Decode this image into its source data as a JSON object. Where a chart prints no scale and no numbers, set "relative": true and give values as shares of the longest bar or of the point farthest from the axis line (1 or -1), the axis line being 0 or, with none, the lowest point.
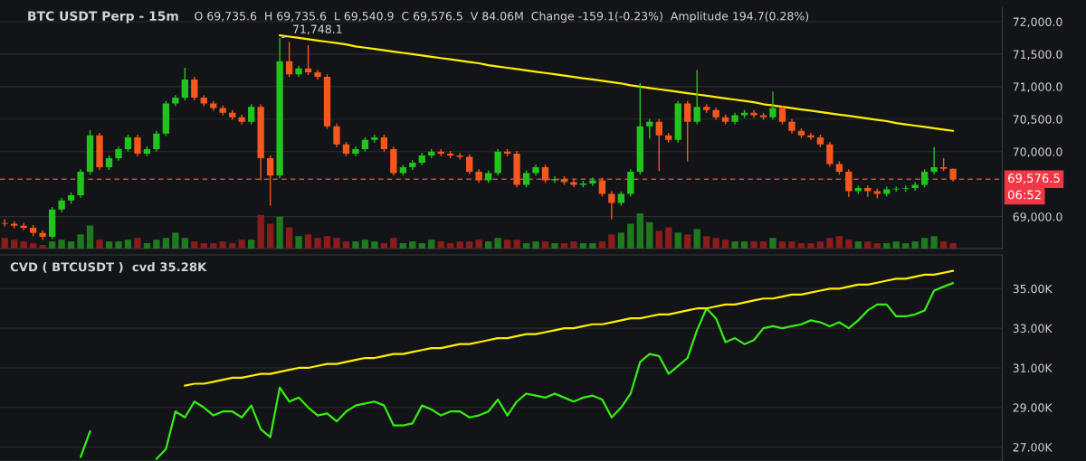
{
  "chart_data": [
    {
      "type": "candlestick",
      "title": "BTC USDT Perp - 15m",
      "subtitle": "O 69,735.6  H 69,735.6  L 69,540.9  C 69,576.5  V 84.06M  Change -159.1(-0.23%)  Amplitude 194.7(0.28%)",
      "categories": [
        null,
        null,
        null,
        null,
        null,
        null,
        null,
        null,
        null,
        null,
        null,
        null,
        null,
        null,
        null,
        null,
        null,
        null,
        null,
        null,
        null,
        null,
        null,
        null,
        null,
        null,
        null,
        null,
        null,
        null,
        null,
        null,
        null,
        null,
        null,
        null,
        null,
        null,
        null,
        null,
        null,
        null,
        null,
        null,
        null,
        null,
        null,
        null,
        null,
        null,
        null,
        null,
        null,
        null,
        null,
        null,
        null,
        null,
        null,
        null,
        null,
        null,
        null,
        null,
        null,
        null,
        null,
        null,
        null,
        null,
        null,
        null,
        null,
        null,
        null,
        null,
        null,
        null,
        null,
        null,
        null,
        null,
        null,
        null,
        null,
        null,
        null,
        null,
        null,
        null,
        null,
        null,
        null,
        null,
        null,
        null,
        null,
        null,
        null,
        null,
        null
      ],
      "ohlc": [
        [
          68900,
          68960,
          68850,
          68890
        ],
        [
          68890,
          68930,
          68820,
          68860
        ],
        [
          68860,
          68900,
          68790,
          68830
        ],
        [
          68830,
          68870,
          68700,
          68750
        ],
        [
          68750,
          68790,
          68640,
          68690
        ],
        [
          68690,
          69150,
          68650,
          69110
        ],
        [
          69110,
          69290,
          69070,
          69250
        ],
        [
          69250,
          69370,
          69200,
          69330
        ],
        [
          69330,
          69730,
          69290,
          69690
        ],
        [
          69690,
          70330,
          69650,
          70250
        ],
        [
          70250,
          70290,
          69720,
          69760
        ],
        [
          69760,
          69940,
          69720,
          69900
        ],
        [
          69900,
          70080,
          69860,
          70040
        ],
        [
          70040,
          70260,
          70000,
          70220
        ],
        [
          70220,
          70260,
          69930,
          69970
        ],
        [
          69970,
          70080,
          69930,
          70040
        ],
        [
          70040,
          70320,
          70000,
          70280
        ],
        [
          70280,
          70780,
          70240,
          70740
        ],
        [
          70740,
          70870,
          70700,
          70830
        ],
        [
          70830,
          71290,
          70790,
          71110
        ],
        [
          71110,
          71150,
          70790,
          70830
        ],
        [
          70830,
          70870,
          70700,
          70740
        ],
        [
          70740,
          70780,
          70630,
          70670
        ],
        [
          70670,
          70710,
          70560,
          70600
        ],
        [
          70600,
          70640,
          70490,
          70530
        ],
        [
          70530,
          70570,
          70420,
          70460
        ],
        [
          70460,
          70730,
          70420,
          70690
        ],
        [
          70690,
          70730,
          69560,
          69900
        ],
        [
          69900,
          69940,
          69170,
          69630
        ],
        [
          69630,
          71748.1,
          69590,
          71390
        ],
        [
          71390,
          71690,
          71150,
          71190
        ],
        [
          71190,
          71320,
          71150,
          71280
        ],
        [
          71280,
          71640,
          71180,
          71220
        ],
        [
          71220,
          71260,
          71110,
          71150
        ],
        [
          71150,
          71190,
          70350,
          70390
        ],
        [
          70390,
          70430,
          70070,
          70110
        ],
        [
          70110,
          70150,
          69930,
          69970
        ],
        [
          69970,
          70080,
          69930,
          70040
        ],
        [
          70040,
          70220,
          70000,
          70180
        ],
        [
          70180,
          70260,
          70140,
          70220
        ],
        [
          70220,
          70260,
          70000,
          70040
        ],
        [
          70040,
          70080,
          69630,
          69670
        ],
        [
          69670,
          69800,
          69630,
          69760
        ],
        [
          69760,
          69870,
          69720,
          69830
        ],
        [
          69830,
          69980,
          69790,
          69940
        ],
        [
          69940,
          70040,
          69900,
          70000
        ],
        [
          70000,
          70040,
          69930,
          69970
        ],
        [
          69970,
          70010,
          69900,
          69940
        ],
        [
          69940,
          69980,
          69880,
          69920
        ],
        [
          69920,
          69960,
          69650,
          69690
        ],
        [
          69690,
          69730,
          69520,
          69560
        ],
        [
          69560,
          69710,
          69520,
          69670
        ],
        [
          69670,
          70040,
          69630,
          70000
        ],
        [
          70000,
          70040,
          69930,
          69970
        ],
        [
          69970,
          70010,
          69450,
          69490
        ],
        [
          69490,
          69710,
          69450,
          69670
        ],
        [
          69670,
          69800,
          69630,
          69760
        ],
        [
          69760,
          69800,
          69520,
          69560
        ],
        [
          69560,
          69620,
          69520,
          69580
        ],
        [
          69580,
          69620,
          69490,
          69530
        ],
        [
          69530,
          69570,
          69450,
          69490
        ],
        [
          69490,
          69550,
          69450,
          69510
        ],
        [
          69510,
          69600,
          69470,
          69560
        ],
        [
          69560,
          69600,
          69310,
          69350
        ],
        [
          69350,
          69390,
          68960,
          69210
        ],
        [
          69210,
          69390,
          69170,
          69350
        ],
        [
          69350,
          69730,
          69310,
          69690
        ],
        [
          69690,
          71055,
          69650,
          70390
        ],
        [
          70390,
          70500,
          70200,
          70460
        ],
        [
          70460,
          70500,
          69700,
          70250
        ],
        [
          70250,
          70290,
          70140,
          70180
        ],
        [
          70180,
          70780,
          70140,
          70740
        ],
        [
          70740,
          70780,
          69850,
          70460
        ],
        [
          70460,
          71260,
          70420,
          70690
        ],
        [
          70690,
          70730,
          70600,
          70640
        ],
        [
          70640,
          70680,
          70490,
          70530
        ],
        [
          70530,
          70570,
          70420,
          70460
        ],
        [
          70460,
          70600,
          70420,
          70560
        ],
        [
          70560,
          70640,
          70520,
          70600
        ],
        [
          70600,
          70640,
          70520,
          70560
        ],
        [
          70560,
          70600,
          70490,
          70530
        ],
        [
          70530,
          70920,
          70490,
          70670
        ],
        [
          70670,
          70710,
          70420,
          70460
        ],
        [
          70460,
          70500,
          70280,
          70320
        ],
        [
          70320,
          70360,
          70210,
          70250
        ],
        [
          70250,
          70290,
          70180,
          70220
        ],
        [
          70220,
          70260,
          70070,
          70110
        ],
        [
          70110,
          70150,
          69770,
          69810
        ],
        [
          69810,
          69850,
          69650,
          69690
        ],
        [
          69690,
          69730,
          69300,
          69390
        ],
        [
          69390,
          69480,
          69350,
          69440
        ],
        [
          69440,
          69480,
          69300,
          69390
        ],
        [
          69390,
          69430,
          69280,
          69350
        ],
        [
          69350,
          69460,
          69310,
          69420
        ],
        [
          69420,
          69460,
          69380,
          69430
        ],
        [
          69430,
          69480,
          69380,
          69440
        ],
        [
          69440,
          69530,
          69400,
          69490
        ],
        [
          69490,
          69730,
          69450,
          69690
        ],
        [
          69690,
          70070,
          69650,
          69760
        ],
        [
          69760,
          69900,
          69700,
          69735.6
        ],
        [
          69735.6,
          69735.6,
          69540.9,
          69576.5
        ]
      ],
      "colors": [
        "#f6571d",
        "#f6571d",
        "#f6571d",
        "#f6571d",
        "#f6571d",
        "#22c31f",
        "#22c31f",
        "#22c31f",
        "#22c31f",
        "#22c31f",
        "#f6571d",
        "#22c31f",
        "#22c31f",
        "#22c31f",
        "#f6571d",
        "#22c31f",
        "#22c31f",
        "#22c31f",
        "#22c31f",
        "#22c31f",
        "#f6571d",
        "#f6571d",
        "#f6571d",
        "#f6571d",
        "#f6571d",
        "#f6571d",
        "#22c31f",
        "#f6571d",
        "#f6571d",
        "#22c31f",
        "#f6571d",
        "#22c31f",
        "#f6571d",
        "#f6571d",
        "#f6571d",
        "#f6571d",
        "#f6571d",
        "#22c31f",
        "#22c31f",
        "#22c31f",
        "#f6571d",
        "#f6571d",
        "#22c31f",
        "#22c31f",
        "#22c31f",
        "#22c31f",
        "#f6571d",
        "#f6571d",
        "#f6571d",
        "#f6571d",
        "#f6571d",
        "#22c31f",
        "#22c31f",
        "#f6571d",
        "#f6571d",
        "#22c31f",
        "#22c31f",
        "#f6571d",
        "#22c31f",
        "#f6571d",
        "#f6571d",
        "#22c31f",
        "#22c31f",
        "#f6571d",
        "#f6571d",
        "#22c31f",
        "#22c31f",
        "#22c31f",
        "#22c31f",
        "#f6571d",
        "#f6571d",
        "#22c31f",
        "#f6571d",
        "#22c31f",
        "#f6571d",
        "#f6571d",
        "#f6571d",
        "#22c31f",
        "#22c31f",
        "#f6571d",
        "#f6571d",
        "#22c31f",
        "#f6571d",
        "#f6571d",
        "#f6571d",
        "#f6571d",
        "#f6571d",
        "#f6571d",
        "#f6571d",
        "#f6571d",
        "#22c31f",
        "#f6571d",
        "#f6571d",
        "#22c31f",
        "#22c31f",
        "#22c31f",
        "#22c31f",
        "#22c31f",
        "#22c31f",
        "#f6571d",
        "#f6571d"
      ],
      "series": [
        {
          "type": "line",
          "color": "#ffee00",
          "values": [
            null,
            null,
            null,
            null,
            null,
            null,
            null,
            null,
            null,
            null,
            null,
            null,
            null,
            null,
            null,
            null,
            null,
            null,
            null,
            null,
            null,
            null,
            null,
            null,
            null,
            null,
            null,
            null,
            null,
            71790,
            71770,
            71750,
            71730,
            71710,
            71690,
            71670,
            71650,
            71620,
            71600,
            71580,
            71560,
            71540,
            71520,
            71500,
            71480,
            71460,
            71440,
            71420,
            71400,
            71380,
            71360,
            71330,
            71310,
            71290,
            71270,
            71250,
            71230,
            71210,
            71190,
            71170,
            71150,
            71130,
            71110,
            71090,
            71070,
            71050,
            71020,
            71000,
            70980,
            70960,
            70940,
            70920,
            70900,
            70880,
            70860,
            70840,
            70820,
            70800,
            70780,
            70760,
            70730,
            70710,
            70690,
            70670,
            70650,
            70630,
            70610,
            70590,
            70570,
            70550,
            70530,
            70510,
            70490,
            70470,
            70440,
            70420,
            70400,
            70380,
            70360,
            70340,
            70320
          ]
        }
      ],
      "ylim": [
        68510,
        72220
      ],
      "yticks": [
        {
          "value": 69000,
          "label": "69,000.0"
        },
        {
          "value": 70000,
          "label": "70,000.0"
        },
        {
          "value": 70500,
          "label": "70,500.0"
        },
        {
          "value": 71000,
          "label": "71,000.0"
        },
        {
          "value": 71500,
          "label": "71,500.0"
        },
        {
          "value": 72000,
          "label": "72,000.0"
        }
      ],
      "ref_lines": [
        {
          "axis": "y",
          "value": 69576.5,
          "label": "69,576.5",
          "color": "#f23645",
          "line_style": "dashed"
        }
      ],
      "annotations": [
        {
          "text": "71,748.1",
          "y": 71748.1
        },
        "06:52"
      ],
      "tick_labels": "y",
      "grid": "y"
    },
    {
      "type": "bar",
      "relative": true,
      "tick_labels": false,
      "categories": [
        null,
        null,
        null,
        null,
        null,
        null,
        null,
        null,
        null,
        null,
        null,
        null,
        null,
        null,
        null,
        null,
        null,
        null,
        null,
        null,
        null,
        null,
        null,
        null,
        null,
        null,
        null,
        null,
        null,
        null,
        null,
        null,
        null,
        null,
        null,
        null,
        null,
        null,
        null,
        null,
        null,
        null,
        null,
        null,
        null,
        null,
        null,
        null,
        null,
        null,
        null,
        null,
        null,
        null,
        null,
        null,
        null,
        null,
        null,
        null,
        null,
        null,
        null,
        null,
        null,
        null,
        null,
        null,
        null,
        null,
        null,
        null,
        null,
        null,
        null,
        null,
        null,
        null,
        null,
        null,
        null,
        null,
        null,
        null,
        null,
        null,
        null,
        null,
        null,
        null,
        null,
        null,
        null,
        null,
        null,
        null,
        null,
        null,
        null,
        null,
        null
      ],
      "values": [
        0.3,
        0.25,
        0.2,
        0.15,
        0.1,
        0.2,
        0.25,
        0.2,
        0.4,
        0.65,
        0.25,
        0.2,
        0.2,
        0.25,
        0.3,
        0.15,
        0.25,
        0.3,
        0.45,
        0.3,
        0.2,
        0.15,
        0.15,
        0.2,
        0.15,
        0.25,
        0.25,
        0.95,
        0.7,
        0.9,
        0.6,
        0.35,
        0.4,
        0.3,
        0.35,
        0.3,
        0.2,
        0.2,
        0.25,
        0.2,
        0.15,
        0.3,
        0.15,
        0.2,
        0.15,
        0.25,
        0.2,
        0.15,
        0.2,
        0.2,
        0.25,
        0.2,
        0.3,
        0.25,
        0.25,
        0.15,
        0.2,
        0.2,
        0.15,
        0.15,
        0.2,
        0.15,
        0.15,
        0.2,
        0.4,
        0.45,
        0.7,
        1.0,
        0.75,
        0.5,
        0.6,
        0.45,
        0.4,
        0.55,
        0.35,
        0.3,
        0.25,
        0.2,
        0.2,
        0.2,
        0.2,
        0.3,
        0.2,
        0.2,
        0.15,
        0.15,
        0.2,
        0.3,
        0.35,
        0.25,
        0.2,
        0.2,
        0.15,
        0.15,
        0.2,
        0.15,
        0.2,
        0.3,
        0.35,
        0.2,
        0.15
      ],
      "colors": [
        "#8a1c1c",
        "#8a1c1c",
        "#8a1c1c",
        "#8a1c1c",
        "#8a1c1c",
        "#1f7a1f",
        "#1f7a1f",
        "#1f7a1f",
        "#1f7a1f",
        "#1f7a1f",
        "#8a1c1c",
        "#1f7a1f",
        "#1f7a1f",
        "#1f7a1f",
        "#8a1c1c",
        "#1f7a1f",
        "#1f7a1f",
        "#1f7a1f",
        "#1f7a1f",
        "#1f7a1f",
        "#8a1c1c",
        "#8a1c1c",
        "#8a1c1c",
        "#8a1c1c",
        "#8a1c1c",
        "#8a1c1c",
        "#1f7a1f",
        "#8a1c1c",
        "#8a1c1c",
        "#1f7a1f",
        "#8a1c1c",
        "#1f7a1f",
        "#8a1c1c",
        "#8a1c1c",
        "#8a1c1c",
        "#8a1c1c",
        "#8a1c1c",
        "#1f7a1f",
        "#1f7a1f",
        "#1f7a1f",
        "#8a1c1c",
        "#8a1c1c",
        "#1f7a1f",
        "#1f7a1f",
        "#1f7a1f",
        "#1f7a1f",
        "#8a1c1c",
        "#8a1c1c",
        "#8a1c1c",
        "#8a1c1c",
        "#8a1c1c",
        "#1f7a1f",
        "#1f7a1f",
        "#8a1c1c",
        "#8a1c1c",
        "#1f7a1f",
        "#1f7a1f",
        "#8a1c1c",
        "#1f7a1f",
        "#8a1c1c",
        "#8a1c1c",
        "#1f7a1f",
        "#1f7a1f",
        "#8a1c1c",
        "#8a1c1c",
        "#1f7a1f",
        "#1f7a1f",
        "#1f7a1f",
        "#1f7a1f",
        "#8a1c1c",
        "#8a1c1c",
        "#1f7a1f",
        "#8a1c1c",
        "#1f7a1f",
        "#8a1c1c",
        "#8a1c1c",
        "#8a1c1c",
        "#1f7a1f",
        "#1f7a1f",
        "#8a1c1c",
        "#8a1c1c",
        "#1f7a1f",
        "#8a1c1c",
        "#8a1c1c",
        "#8a1c1c",
        "#8a1c1c",
        "#8a1c1c",
        "#8a1c1c",
        "#8a1c1c",
        "#8a1c1c",
        "#1f7a1f",
        "#8a1c1c",
        "#8a1c1c",
        "#1f7a1f",
        "#1f7a1f",
        "#1f7a1f",
        "#1f7a1f",
        "#1f7a1f",
        "#1f7a1f",
        "#8a1c1c",
        "#8a1c1c"
      ]
    },
    {
      "type": "line",
      "title": "CVD ( BTCUSDT )  cvd 35.28K",
      "categories": [
        null,
        null,
        null,
        null,
        null,
        null,
        null,
        null,
        null,
        null,
        null,
        null,
        null,
        null,
        null,
        null,
        null,
        null,
        null,
        null,
        null,
        null,
        null,
        null,
        null,
        null,
        null,
        null,
        null,
        null,
        null,
        null,
        null,
        null,
        null,
        null,
        null,
        null,
        null,
        null,
        null,
        null,
        null,
        null,
        null,
        null,
        null,
        null,
        null,
        null,
        null,
        null,
        null,
        null,
        null,
        null,
        null,
        null,
        null,
        null,
        null,
        null,
        null,
        null,
        null,
        null,
        null,
        null,
        null,
        null,
        null,
        null,
        null,
        null,
        null,
        null,
        null,
        null,
        null,
        null,
        null,
        null,
        null,
        null,
        null,
        null,
        null,
        null,
        null,
        null,
        null,
        null,
        null,
        null,
        null,
        null,
        null,
        null,
        null,
        null,
        null
      ],
      "series": [
        {
          "color": "#33ee11",
          "values": [
            null,
            null,
            null,
            null,
            null,
            null,
            null,
            null,
            26.5,
            27.8,
            null,
            null,
            null,
            null,
            null,
            null,
            26.4,
            26.9,
            28.8,
            28.5,
            29.3,
            29.0,
            28.6,
            28.8,
            28.8,
            28.5,
            29.1,
            27.9,
            27.5,
            30.0,
            29.3,
            29.5,
            29.0,
            28.6,
            28.7,
            28.3,
            28.8,
            29.1,
            29.2,
            29.3,
            29.1,
            28.1,
            28.1,
            28.2,
            29.1,
            28.9,
            28.6,
            28.8,
            28.8,
            28.5,
            28.6,
            28.8,
            29.4,
            28.6,
            29.3,
            29.7,
            29.6,
            29.5,
            29.7,
            29.5,
            29.3,
            29.5,
            29.6,
            29.4,
            28.5,
            29.0,
            29.7,
            31.3,
            31.7,
            31.6,
            30.7,
            31.1,
            31.5,
            32.9,
            34.0,
            33.5,
            32.3,
            32.5,
            32.2,
            32.4,
            33.0,
            33.1,
            33.0,
            33.1,
            33.2,
            33.4,
            33.3,
            33.1,
            33.3,
            33.0,
            33.4,
            33.9,
            34.2,
            34.2,
            33.6,
            33.6,
            33.7,
            33.9,
            34.9,
            35.1,
            35.28
          ]
        },
        {
          "color": "#ffee00",
          "values": [
            null,
            null,
            null,
            null,
            null,
            null,
            null,
            null,
            null,
            null,
            null,
            null,
            null,
            null,
            null,
            null,
            null,
            null,
            null,
            30.1,
            30.2,
            30.2,
            30.3,
            30.4,
            30.5,
            30.5,
            30.6,
            30.7,
            30.7,
            30.8,
            30.9,
            31.0,
            31.0,
            31.1,
            31.2,
            31.2,
            31.3,
            31.4,
            31.5,
            31.5,
            31.6,
            31.7,
            31.7,
            31.8,
            31.9,
            32.0,
            32.0,
            32.1,
            32.2,
            32.2,
            32.3,
            32.4,
            32.5,
            32.5,
            32.6,
            32.7,
            32.7,
            32.8,
            32.9,
            33.0,
            33.0,
            33.1,
            33.2,
            33.2,
            33.3,
            33.4,
            33.5,
            33.5,
            33.6,
            33.7,
            33.7,
            33.8,
            33.9,
            34.0,
            34.0,
            34.1,
            34.2,
            34.2,
            34.3,
            34.4,
            34.5,
            34.5,
            34.6,
            34.7,
            34.7,
            34.8,
            34.9,
            35.0,
            35.0,
            35.1,
            35.2,
            35.2,
            35.3,
            35.4,
            35.5,
            35.5,
            35.6,
            35.7,
            35.7,
            35.8,
            35.9
          ]
        }
      ],
      "ylim": [
        26.3,
        36.7
      ],
      "yticks": [
        {
          "value": 27,
          "label": "27.00K"
        },
        {
          "value": 29,
          "label": "29.00K"
        },
        {
          "value": 31,
          "label": "31.00K"
        },
        {
          "value": 33,
          "label": "33.00K"
        },
        {
          "value": 35,
          "label": "35.00K"
        }
      ],
      "tick_labels": "y",
      "grid": "y"
    }
  ]
}
